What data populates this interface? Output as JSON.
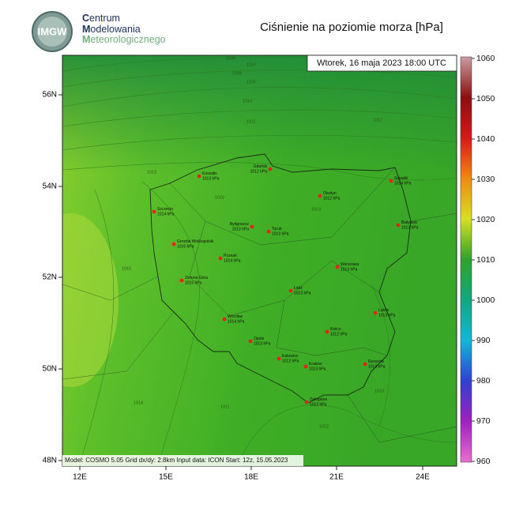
{
  "header": {
    "logo": "IMGW",
    "org_lines": [
      "Centrum",
      "Modelowania",
      "Meteorologicznego"
    ],
    "title": "Ciśnienie na poziomie morza [hPa]"
  },
  "map": {
    "timestamp": "Wtorek, 16 maja 2023 18:00 UTC",
    "footer": "Model: COSMO 5.05  Grid dx/dy: 2.8km  Input data: ICON  Start: 12z, 15.05.2023",
    "lat_labels": [
      "56N",
      "54N",
      "52N",
      "50N",
      "48N"
    ],
    "lon_labels": [
      "12E",
      "15E",
      "18E",
      "21E",
      "24E"
    ],
    "cities": [
      {
        "name": "Koszalin",
        "value": "1013 hPa"
      },
      {
        "name": "Gdańsk",
        "value": "1012 hPa"
      },
      {
        "name": "Suwałki",
        "value": "1014 hPa"
      },
      {
        "name": "Olsztyn",
        "value": "1012 hPa"
      },
      {
        "name": "Szczecin",
        "value": "1014 hPa"
      },
      {
        "name": "Bydgoszcz",
        "value": "1013 hPa"
      },
      {
        "name": "Toruń",
        "value": "1013 hPa"
      },
      {
        "name": "Białystok",
        "value": "1013 hPa"
      },
      {
        "name": "Gorzów Wielkopolski",
        "value": "1015 hPa"
      },
      {
        "name": "Poznań",
        "value": "1014 hPa"
      },
      {
        "name": "Warszawa",
        "value": "1013 hPa"
      },
      {
        "name": "Zielona Góra",
        "value": "1015 hPa"
      },
      {
        "name": "Łódź",
        "value": "1013 hPa"
      },
      {
        "name": "Lublin",
        "value": "1013 hPa"
      },
      {
        "name": "Wrocław",
        "value": "1014 hPa"
      },
      {
        "name": "Kielce",
        "value": "1012 hPa"
      },
      {
        "name": "Opole",
        "value": "1013 hPa"
      },
      {
        "name": "Katowice",
        "value": "1012 hPa"
      },
      {
        "name": "Kraków",
        "value": "1013 hPa"
      },
      {
        "name": "Rzeszów",
        "value": "1013 hPa"
      },
      {
        "name": "Zakopane",
        "value": "1012 hPa"
      }
    ],
    "isobar_labels": [
      "1006",
      "1007",
      "1008",
      "1009",
      "1010",
      "1011",
      "1012",
      "1013",
      "1013",
      "1016",
      "1015",
      "1014",
      "1011",
      "1012",
      "1013"
    ]
  },
  "colorbar": {
    "ticks": [
      1060,
      1050,
      1040,
      1030,
      1020,
      1010,
      1000,
      990,
      980,
      970,
      960
    ]
  }
}
